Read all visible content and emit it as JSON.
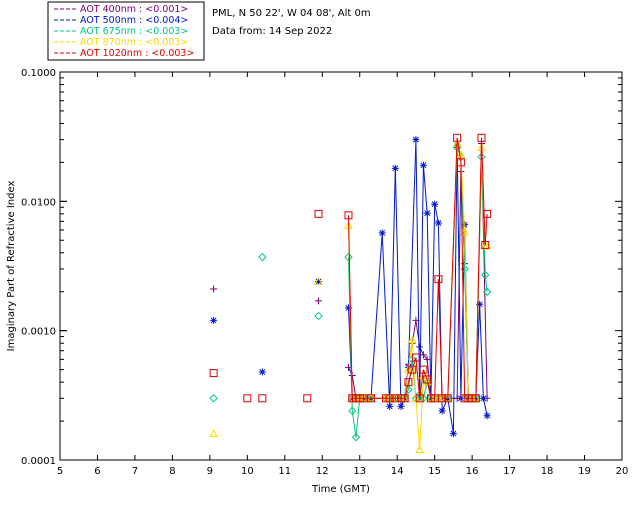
{
  "chart_data": {
    "type": "line",
    "xlabel": "Time (GMT)",
    "ylabel": "Imaginary Part of Refractive Index",
    "xlim": [
      5,
      20
    ],
    "ylim": [
      0.0001,
      0.1
    ],
    "yscale": "log",
    "x_ticks": [
      "5",
      "6",
      "7",
      "8",
      "9",
      "10",
      "11",
      "12",
      "13",
      "14",
      "15",
      "16",
      "17",
      "18",
      "19",
      "20"
    ],
    "y_ticks": [
      {
        "value": 0.0001,
        "label": "0.0001"
      },
      {
        "value": 0.001,
        "label": "0.0010"
      },
      {
        "value": 0.01,
        "label": "0.0100"
      },
      {
        "value": 0.1,
        "label": "0.1000"
      }
    ],
    "grid": false,
    "legend_position": "top-left, outside plot",
    "annotations": [
      "PML, N 50 22', W 04 08', Alt 0m",
      "Data from: 14 Sep 2022"
    ],
    "series": [
      {
        "name": "AOT  400nm : <0.001>",
        "color": "#7a007a",
        "marker": "plus",
        "points": [
          [
            9.1,
            0.0021
          ],
          [
            11.9,
            0.0017
          ],
          [
            12.7,
            0.00052
          ],
          [
            12.8,
            0.00045
          ],
          [
            12.9,
            0.0003
          ],
          [
            13.0,
            0.0003
          ],
          [
            13.1,
            0.0003
          ],
          [
            13.3,
            0.0003
          ],
          [
            13.7,
            0.0003
          ],
          [
            13.8,
            0.0003
          ],
          [
            13.95,
            0.0003
          ],
          [
            14.1,
            0.0003
          ],
          [
            14.2,
            0.0003
          ],
          [
            14.3,
            0.00055
          ],
          [
            14.4,
            0.0008
          ],
          [
            14.5,
            0.0012
          ],
          [
            14.6,
            0.00075
          ],
          [
            14.7,
            0.00065
          ],
          [
            14.8,
            0.0006
          ],
          [
            14.9,
            0.0003
          ],
          [
            15.0,
            0.0003
          ],
          [
            15.1,
            0.0003
          ],
          [
            15.2,
            0.0003
          ],
          [
            15.35,
            0.0003
          ],
          [
            15.6,
            0.0003
          ],
          [
            15.7,
            0.017
          ],
          [
            15.8,
            0.0033
          ],
          [
            15.9,
            0.0003
          ],
          [
            16.0,
            0.0003
          ],
          [
            16.1,
            0.0003
          ],
          [
            16.25,
            0.028
          ],
          [
            16.4,
            0.0003
          ]
        ]
      },
      {
        "name": "AOT  500nm : <0.004>",
        "color": "#0018c8",
        "marker": "asterisk",
        "points": [
          [
            9.1,
            0.0012
          ],
          [
            10.4,
            0.00048
          ],
          [
            11.9,
            0.0024
          ],
          [
            12.7,
            0.0015
          ],
          [
            12.8,
            0.0003
          ],
          [
            12.9,
            0.0003
          ],
          [
            13.0,
            0.0003
          ],
          [
            13.1,
            0.0003
          ],
          [
            13.3,
            0.0003
          ],
          [
            13.6,
            0.0057
          ],
          [
            13.8,
            0.00026
          ],
          [
            13.95,
            0.018
          ],
          [
            14.1,
            0.00026
          ],
          [
            14.2,
            0.0003
          ],
          [
            14.3,
            0.00052
          ],
          [
            14.5,
            0.03
          ],
          [
            14.6,
            0.0003
          ],
          [
            14.7,
            0.019
          ],
          [
            14.8,
            0.0081
          ],
          [
            14.9,
            0.0003
          ],
          [
            15.0,
            0.0095
          ],
          [
            15.1,
            0.0068
          ],
          [
            15.2,
            0.00024
          ],
          [
            15.35,
            0.0003
          ],
          [
            15.5,
            0.00016
          ],
          [
            15.6,
            0.027
          ],
          [
            15.7,
            0.0003
          ],
          [
            15.8,
            0.0066
          ],
          [
            15.9,
            0.0003
          ],
          [
            16.0,
            0.0003
          ],
          [
            16.1,
            0.0003
          ],
          [
            16.2,
            0.0016
          ],
          [
            16.3,
            0.0003
          ],
          [
            16.4,
            0.00022
          ]
        ]
      },
      {
        "name": "AOT  675nm : <0.003>",
        "color": "#00c878",
        "marker": "diamond",
        "points": [
          [
            9.1,
            0.0003
          ],
          [
            10.4,
            0.0037
          ],
          [
            11.9,
            0.0013
          ],
          [
            12.7,
            0.0037
          ],
          [
            12.8,
            0.00024
          ],
          [
            12.9,
            0.00015
          ],
          [
            13.0,
            0.0003
          ],
          [
            13.1,
            0.0003
          ],
          [
            13.3,
            0.0003
          ],
          [
            13.7,
            0.0003
          ],
          [
            13.8,
            0.0003
          ],
          [
            13.95,
            0.0003
          ],
          [
            14.1,
            0.0003
          ],
          [
            14.2,
            0.0003
          ],
          [
            14.3,
            0.00035
          ],
          [
            14.4,
            0.0006
          ],
          [
            14.5,
            0.0003
          ],
          [
            14.6,
            0.00032
          ],
          [
            14.7,
            0.0003
          ],
          [
            14.8,
            0.0004
          ],
          [
            14.9,
            0.0003
          ],
          [
            15.0,
            0.0003
          ],
          [
            15.1,
            0.0003
          ],
          [
            15.2,
            0.0003
          ],
          [
            15.35,
            0.0003
          ],
          [
            15.6,
            0.026
          ],
          [
            15.7,
            0.022
          ],
          [
            15.8,
            0.003
          ],
          [
            15.9,
            0.0003
          ],
          [
            16.0,
            0.0003
          ],
          [
            16.1,
            0.0003
          ],
          [
            16.25,
            0.022
          ],
          [
            16.35,
            0.0027
          ],
          [
            16.4,
            0.002
          ]
        ]
      },
      {
        "name": "AOT  870nm : <0.003>",
        "color": "#ffd800",
        "marker": "triangle",
        "points": [
          [
            9.1,
            0.00016
          ],
          [
            11.9,
            0.0024
          ],
          [
            12.7,
            0.0065
          ],
          [
            12.8,
            0.0003
          ],
          [
            12.9,
            0.0003
          ],
          [
            13.0,
            0.0003
          ],
          [
            13.1,
            0.0003
          ],
          [
            13.3,
            0.0003
          ],
          [
            13.7,
            0.0003
          ],
          [
            13.8,
            0.0003
          ],
          [
            13.95,
            0.0003
          ],
          [
            14.1,
            0.0003
          ],
          [
            14.2,
            0.0003
          ],
          [
            14.3,
            0.0005
          ],
          [
            14.4,
            0.00085
          ],
          [
            14.5,
            0.0003
          ],
          [
            14.6,
            0.00012
          ],
          [
            14.7,
            0.00045
          ],
          [
            14.8,
            0.0004
          ],
          [
            14.9,
            0.0003
          ],
          [
            15.0,
            0.0003
          ],
          [
            15.1,
            0.0003
          ],
          [
            15.2,
            0.0003
          ],
          [
            15.35,
            0.0003
          ],
          [
            15.6,
            0.028
          ],
          [
            15.7,
            0.023
          ],
          [
            15.8,
            0.0058
          ],
          [
            15.9,
            0.0003
          ],
          [
            16.0,
            0.0003
          ],
          [
            16.1,
            0.0003
          ],
          [
            16.25,
            0.026
          ],
          [
            16.35,
            0.0045
          ],
          [
            16.4,
            0.0045
          ]
        ]
      },
      {
        "name": "AOT 1020nm : <0.003>",
        "color": "#e00000",
        "marker": "square",
        "points": [
          [
            9.1,
            0.00047
          ],
          [
            10.0,
            0.0003
          ],
          [
            10.4,
            0.0003
          ],
          [
            11.6,
            0.0003
          ],
          [
            11.9,
            0.008
          ],
          [
            12.7,
            0.0078
          ],
          [
            12.8,
            0.0003
          ],
          [
            12.9,
            0.0003
          ],
          [
            13.0,
            0.0003
          ],
          [
            13.1,
            0.0003
          ],
          [
            13.3,
            0.0003
          ],
          [
            13.7,
            0.0003
          ],
          [
            13.8,
            0.0003
          ],
          [
            13.95,
            0.0003
          ],
          [
            14.1,
            0.0003
          ],
          [
            14.2,
            0.0003
          ],
          [
            14.3,
            0.0004
          ],
          [
            14.4,
            0.0005
          ],
          [
            14.5,
            0.00062
          ],
          [
            14.6,
            0.0003
          ],
          [
            14.7,
            0.0005
          ],
          [
            14.8,
            0.00042
          ],
          [
            14.9,
            0.0003
          ],
          [
            15.0,
            0.0003
          ],
          [
            15.1,
            0.0025
          ],
          [
            15.2,
            0.0003
          ],
          [
            15.35,
            0.0003
          ],
          [
            15.6,
            0.031
          ],
          [
            15.7,
            0.02
          ],
          [
            15.8,
            0.0003
          ],
          [
            15.9,
            0.0003
          ],
          [
            16.0,
            0.0003
          ],
          [
            16.1,
            0.0003
          ],
          [
            16.25,
            0.031
          ],
          [
            16.35,
            0.0046
          ],
          [
            16.4,
            0.008
          ]
        ]
      }
    ]
  }
}
